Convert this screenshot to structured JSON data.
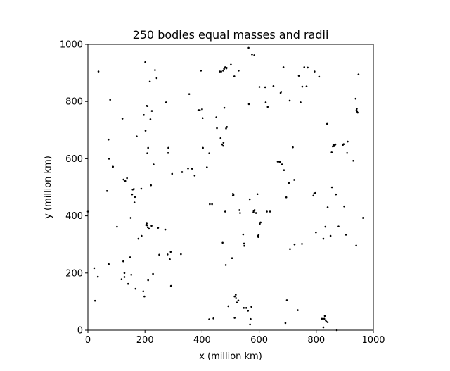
{
  "chart_data": {
    "type": "scatter",
    "title": "250 bodies equal masses and radii",
    "xlabel": "x (million km)",
    "ylabel": "y (million km)",
    "xlim": [
      0,
      1000
    ],
    "ylim": [
      0,
      1000
    ],
    "xticks": [
      0,
      200,
      400,
      600,
      800,
      1000
    ],
    "yticks": [
      0,
      200,
      400,
      600,
      800,
      1000
    ],
    "grid": false,
    "marker_color": "#000000",
    "points": [
      [
        0,
        415
      ],
      [
        22,
        217
      ],
      [
        25,
        103
      ],
      [
        35,
        187
      ],
      [
        37,
        905
      ],
      [
        67,
        487
      ],
      [
        72,
        667
      ],
      [
        73,
        231
      ],
      [
        74,
        600
      ],
      [
        78,
        806
      ],
      [
        88,
        572
      ],
      [
        102,
        362
      ],
      [
        118,
        178
      ],
      [
        121,
        740
      ],
      [
        124,
        241
      ],
      [
        125,
        527
      ],
      [
        128,
        186
      ],
      [
        128,
        200
      ],
      [
        131,
        522
      ],
      [
        137,
        532
      ],
      [
        141,
        162
      ],
      [
        148,
        255
      ],
      [
        150,
        393
      ],
      [
        152,
        194
      ],
      [
        155,
        475
      ],
      [
        157,
        492
      ],
      [
        161,
        494
      ],
      [
        163,
        447
      ],
      [
        165,
        466
      ],
      [
        167,
        145
      ],
      [
        171,
        678
      ],
      [
        177,
        320
      ],
      [
        187,
        495
      ],
      [
        188,
        330
      ],
      [
        194,
        136
      ],
      [
        196,
        753
      ],
      [
        198,
        118
      ],
      [
        201,
        938
      ],
      [
        202,
        698
      ],
      [
        204,
        368
      ],
      [
        206,
        785
      ],
      [
        206,
        373
      ],
      [
        207,
        367
      ],
      [
        208,
        619
      ],
      [
        209,
        784
      ],
      [
        210,
        360
      ],
      [
        211,
        638
      ],
      [
        211,
        175
      ],
      [
        214,
        355
      ],
      [
        217,
        870
      ],
      [
        219,
        738
      ],
      [
        221,
        507
      ],
      [
        223,
        365
      ],
      [
        224,
        767
      ],
      [
        228,
        197
      ],
      [
        230,
        580
      ],
      [
        235,
        910
      ],
      [
        241,
        882
      ],
      [
        246,
        358
      ],
      [
        250,
        264
      ],
      [
        271,
        352
      ],
      [
        274,
        797
      ],
      [
        279,
        265
      ],
      [
        281,
        620
      ],
      [
        282,
        638
      ],
      [
        287,
        248
      ],
      [
        290,
        274
      ],
      [
        291,
        155
      ],
      [
        295,
        547
      ],
      [
        326,
        266
      ],
      [
        330,
        553
      ],
      [
        351,
        566
      ],
      [
        355,
        826
      ],
      [
        365,
        565
      ],
      [
        374,
        541
      ],
      [
        387,
        770
      ],
      [
        392,
        770
      ],
      [
        396,
        908
      ],
      [
        400,
        773
      ],
      [
        402,
        742
      ],
      [
        403,
        638
      ],
      [
        417,
        570
      ],
      [
        425,
        619
      ],
      [
        425,
        38
      ],
      [
        427,
        441
      ],
      [
        435,
        441
      ],
      [
        440,
        41
      ],
      [
        450,
        745
      ],
      [
        452,
        707
      ],
      [
        462,
        905
      ],
      [
        465,
        672
      ],
      [
        467,
        905
      ],
      [
        470,
        650
      ],
      [
        472,
        306
      ],
      [
        474,
        908
      ],
      [
        474,
        645
      ],
      [
        475,
        656
      ],
      [
        477,
        914
      ],
      [
        478,
        778
      ],
      [
        481,
        415
      ],
      [
        481,
        920
      ],
      [
        483,
        228
      ],
      [
        484,
        706
      ],
      [
        485,
        916
      ],
      [
        486,
        918
      ],
      [
        487,
        711
      ],
      [
        492,
        84
      ],
      [
        501,
        929
      ],
      [
        505,
        252
      ],
      [
        508,
        477
      ],
      [
        508,
        471
      ],
      [
        510,
        473
      ],
      [
        513,
        888
      ],
      [
        514,
        43
      ],
      [
        514,
        118
      ],
      [
        518,
        124
      ],
      [
        519,
        112
      ],
      [
        522,
        97
      ],
      [
        527,
        104
      ],
      [
        528,
        908
      ],
      [
        531,
        420
      ],
      [
        533,
        410
      ],
      [
        544,
        335
      ],
      [
        546,
        78
      ],
      [
        547,
        303
      ],
      [
        548,
        295
      ],
      [
        555,
        78
      ],
      [
        561,
        68
      ],
      [
        563,
        988
      ],
      [
        564,
        791
      ],
      [
        567,
        458
      ],
      [
        568,
        20
      ],
      [
        570,
        39
      ],
      [
        573,
        82
      ],
      [
        575,
        965
      ],
      [
        580,
        413
      ],
      [
        581,
        418
      ],
      [
        583,
        962
      ],
      [
        584,
        420
      ],
      [
        589,
        410
      ],
      [
        594,
        476
      ],
      [
        596,
        330
      ],
      [
        597,
        326
      ],
      [
        598,
        333
      ],
      [
        601,
        851
      ],
      [
        602,
        372
      ],
      [
        605,
        377
      ],
      [
        621,
        850
      ],
      [
        623,
        797
      ],
      [
        627,
        415
      ],
      [
        630,
        781
      ],
      [
        638,
        415
      ],
      [
        650,
        854
      ],
      [
        665,
        590
      ],
      [
        670,
        590
      ],
      [
        673,
        589
      ],
      [
        675,
        830
      ],
      [
        677,
        834
      ],
      [
        680,
        580
      ],
      [
        685,
        920
      ],
      [
        687,
        560
      ],
      [
        692,
        25
      ],
      [
        695,
        465
      ],
      [
        697,
        105
      ],
      [
        704,
        515
      ],
      [
        707,
        803
      ],
      [
        708,
        284
      ],
      [
        718,
        640
      ],
      [
        723,
        526
      ],
      [
        724,
        300
      ],
      [
        735,
        70
      ],
      [
        739,
        890
      ],
      [
        745,
        797
      ],
      [
        750,
        302
      ],
      [
        751,
        852
      ],
      [
        758,
        920
      ],
      [
        766,
        853
      ],
      [
        770,
        919
      ],
      [
        790,
        471
      ],
      [
        793,
        479
      ],
      [
        794,
        905
      ],
      [
        797,
        480
      ],
      [
        799,
        342
      ],
      [
        810,
        887
      ],
      [
        820,
        40
      ],
      [
        825,
        10
      ],
      [
        825,
        320
      ],
      [
        828,
        40
      ],
      [
        830,
        50
      ],
      [
        832,
        362
      ],
      [
        833,
        35
      ],
      [
        835,
        30
      ],
      [
        838,
        722
      ],
      [
        840,
        28
      ],
      [
        840,
        430
      ],
      [
        850,
        330
      ],
      [
        854,
        622
      ],
      [
        855,
        500
      ],
      [
        858,
        643
      ],
      [
        860,
        648
      ],
      [
        862,
        644
      ],
      [
        865,
        648
      ],
      [
        867,
        650
      ],
      [
        869,
        475
      ],
      [
        872,
        0
      ],
      [
        878,
        363
      ],
      [
        893,
        648
      ],
      [
        896,
        651
      ],
      [
        898,
        433
      ],
      [
        904,
        334
      ],
      [
        908,
        620
      ],
      [
        910,
        660
      ],
      [
        930,
        593
      ],
      [
        938,
        810
      ],
      [
        940,
        296
      ],
      [
        941,
        770
      ],
      [
        942,
        775
      ],
      [
        943,
        765
      ],
      [
        945,
        761
      ],
      [
        948,
        895
      ],
      [
        964,
        393
      ]
    ]
  }
}
